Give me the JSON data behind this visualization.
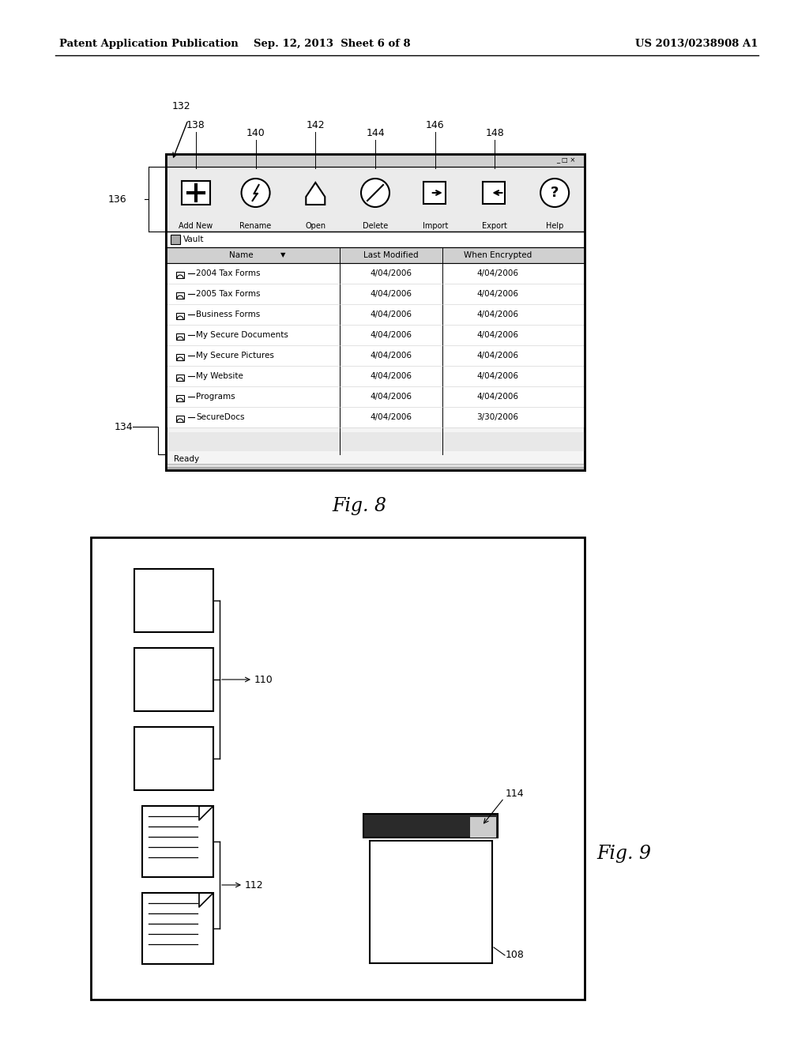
{
  "bg_color": "#ffffff",
  "header_left": "Patent Application Publication",
  "header_center": "Sep. 12, 2013  Sheet 6 of 8",
  "header_right": "US 2013/0238908 A1",
  "fig8_label": "Fig. 8",
  "fig9_label": "Fig. 9",
  "toolbar_labels": [
    "Add New",
    "Rename",
    "Open",
    "Delete",
    "Import",
    "Export",
    "Help"
  ],
  "toolbar_nums": [
    "138",
    "140",
    "142",
    "144",
    "146",
    "148",
    ""
  ],
  "table_rows": [
    {
      "name": "2004 Tax Forms",
      "modified": "4/04/2006",
      "encrypted": "4/04/2006"
    },
    {
      "name": "2005 Tax Forms",
      "modified": "4/04/2006",
      "encrypted": "4/04/2006"
    },
    {
      "name": "Business Forms",
      "modified": "4/04/2006",
      "encrypted": "4/04/2006"
    },
    {
      "name": "My Secure Documents",
      "modified": "4/04/2006",
      "encrypted": "4/04/2006"
    },
    {
      "name": "My Secure Pictures",
      "modified": "4/04/2006",
      "encrypted": "4/04/2006"
    },
    {
      "name": "My Website",
      "modified": "4/04/2006",
      "encrypted": "4/04/2006"
    },
    {
      "name": "Programs",
      "modified": "4/04/2006",
      "encrypted": "4/04/2006"
    },
    {
      "name": "SecureDocs",
      "modified": "4/04/2006",
      "encrypted": "3/30/2006"
    }
  ]
}
